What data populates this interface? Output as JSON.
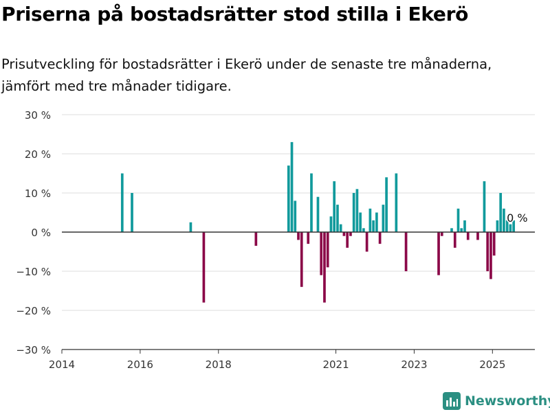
{
  "title": "Priserna på bostadsrätter stod stilla i Ekerö",
  "subtitle": "Prisutveckling för bostadsrätter i Ekerö under de senaste tre månaderna, jämfört med tre månader tidigare.",
  "brand": {
    "name": "Newsworthy"
  },
  "colors": {
    "positive": "#119a9c",
    "negative": "#8b0848",
    "grid": "#dddddd",
    "zero_line": "#333333"
  },
  "chart_data": {
    "type": "bar",
    "title": "Priserna på bostadsrätter stod stilla i Ekerö",
    "subtitle": "Prisutveckling för bostadsrätter i Ekerö under de senaste tre månaderna, jämfört med tre månader tidigare.",
    "ylim": [
      -30,
      30
    ],
    "y_ticks": [
      30,
      20,
      10,
      0,
      -10,
      -20,
      -30
    ],
    "y_tick_labels": [
      "30 %",
      "20 %",
      "10 %",
      "0 %",
      "−10 %",
      "−20 %",
      "−30 %"
    ],
    "x_range": [
      "2014-01",
      "2026-02"
    ],
    "x_ticks": [
      "2014",
      "2016",
      "2018",
      "2021",
      "2023",
      "2025"
    ],
    "grid": true,
    "last_value_label": "0 %",
    "x": [
      "2015-07",
      "2015-10",
      "2017-04",
      "2017-08",
      "2018-12",
      "2019-10",
      "2019-11",
      "2019-12",
      "2020-01",
      "2020-02",
      "2020-04",
      "2020-05",
      "2020-07",
      "2020-08",
      "2020-09",
      "2020-10",
      "2020-11",
      "2020-12",
      "2021-01",
      "2021-02",
      "2021-03",
      "2021-04",
      "2021-05",
      "2021-06",
      "2021-07",
      "2021-08",
      "2021-09",
      "2021-10",
      "2021-11",
      "2021-12",
      "2022-01",
      "2022-02",
      "2022-03",
      "2022-04",
      "2022-07",
      "2022-10",
      "2023-08",
      "2023-09",
      "2023-12",
      "2024-01",
      "2024-02",
      "2024-03",
      "2024-04",
      "2024-05",
      "2024-08",
      "2024-10",
      "2024-11",
      "2024-12",
      "2025-01",
      "2025-02",
      "2025-03",
      "2025-04",
      "2025-05",
      "2025-06",
      "2025-07"
    ],
    "values": [
      15,
      10,
      2.5,
      -18,
      -3.5,
      17,
      23,
      8,
      -2,
      -14,
      -3,
      15,
      9,
      -11,
      -18,
      -9,
      4,
      13,
      7,
      2,
      -1,
      -4,
      -1,
      10,
      11,
      5,
      1,
      -5,
      6,
      3,
      5,
      -3,
      7,
      14,
      15,
      -10,
      -11,
      -1,
      1,
      -4,
      6,
      1,
      3,
      -2,
      -2,
      13,
      -10,
      -12,
      -6,
      3,
      10,
      6,
      3,
      2,
      3
    ]
  }
}
